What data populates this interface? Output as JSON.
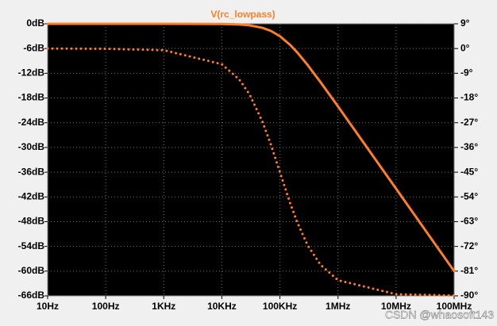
{
  "chart_data": {
    "type": "line",
    "title": "V(rc_lowpass)",
    "log_x": true,
    "grid": true,
    "x": [
      10,
      100,
      1000,
      10000,
      20000,
      30000,
      50000,
      70000,
      100000,
      150000,
      200000,
      300000,
      500000,
      1000000,
      10000000,
      100000000
    ],
    "series": [
      {
        "color": "#ff7f27",
        "style": "solid",
        "values": [
          0,
          0,
          0,
          -0.04,
          -0.17,
          -0.37,
          -0.97,
          -1.73,
          -3.01,
          -5.12,
          -6.99,
          -10.0,
          -14.15,
          -20.04,
          -40.0,
          -60.0
        ]
      },
      {
        "color": "#ff7f27",
        "style": "dotted",
        "axis": "y2",
        "values": [
          0,
          -0.1,
          -0.6,
          -5.7,
          -11.3,
          -16.7,
          -26.6,
          -35.0,
          -45.0,
          -56.3,
          -63.4,
          -71.6,
          -78.7,
          -84.3,
          -89.4,
          -89.9
        ]
      }
    ],
    "xlim": [
      10,
      100000000
    ],
    "xticks": [
      {
        "value": 10,
        "label": "10Hz"
      },
      {
        "value": 100,
        "label": "100Hz"
      },
      {
        "value": 1000,
        "label": "1KHz"
      },
      {
        "value": 10000,
        "label": "10KHz"
      },
      {
        "value": 100000,
        "label": "100KHz"
      },
      {
        "value": 1000000,
        "label": "1MHz"
      },
      {
        "value": 10000000,
        "label": "10MHz"
      },
      {
        "value": 100000000,
        "label": "100MHz"
      }
    ],
    "ylim": [
      -66,
      0
    ],
    "yticks": [
      {
        "value": 0,
        "label": "0dB"
      },
      {
        "value": -6,
        "label": "-6dB"
      },
      {
        "value": -12,
        "label": "-12dB"
      },
      {
        "value": -18,
        "label": "-18dB"
      },
      {
        "value": -24,
        "label": "-24dB"
      },
      {
        "value": -30,
        "label": "-30dB"
      },
      {
        "value": -36,
        "label": "-36dB"
      },
      {
        "value": -42,
        "label": "-42dB"
      },
      {
        "value": -48,
        "label": "-48dB"
      },
      {
        "value": -54,
        "label": "-54dB"
      },
      {
        "value": -60,
        "label": "-60dB"
      },
      {
        "value": -66,
        "label": "-66dB"
      }
    ],
    "y2lim": [
      -90,
      9
    ],
    "y2ticks": [
      {
        "value": 9,
        "label": "9°"
      },
      {
        "value": 0,
        "label": "0°"
      },
      {
        "value": -9,
        "label": "-9°"
      },
      {
        "value": -18,
        "label": "-18°"
      },
      {
        "value": -27,
        "label": "-27°"
      },
      {
        "value": -36,
        "label": "-36°"
      },
      {
        "value": -45,
        "label": "-45°"
      },
      {
        "value": -54,
        "label": "-54°"
      },
      {
        "value": -63,
        "label": "-63°"
      },
      {
        "value": -72,
        "label": "-72°"
      },
      {
        "value": -81,
        "label": "-81°"
      },
      {
        "value": -90,
        "label": "-90°"
      }
    ],
    "watermark": "CSDN @whaosoft143"
  }
}
